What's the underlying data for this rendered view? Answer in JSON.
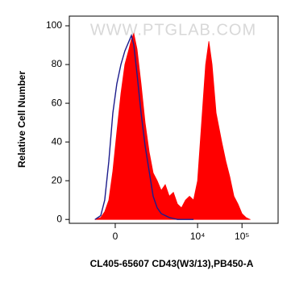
{
  "chart_data": {
    "type": "histogram-overlay",
    "watermark": "WWW.PTGLAB.COM",
    "x_label": "CL405-65607  CD43(W3/13),PB450-A",
    "y_label": "Relative Cell Number",
    "x_scale": "biexponential",
    "x": [
      -350,
      -231,
      -160,
      -95,
      -35,
      23,
      83,
      146,
      216,
      263,
      313,
      389,
      498,
      628,
      787,
      980,
      1218,
      1506,
      1862,
      2302,
      2842,
      3508,
      4326,
      5334,
      6580,
      8106,
      9996,
      12320,
      15180,
      17950,
      21220,
      26150,
      35060,
      43260,
      53290,
      65740,
      81120,
      99960,
      123200,
      151960
    ],
    "series": [
      {
        "color": "#ff0000",
        "fill": true,
        "values": [
          0,
          1,
          4,
          10,
          25,
          45,
          65,
          80,
          88,
          93,
          96,
          88,
          70,
          50,
          35,
          24,
          20,
          15,
          18,
          12,
          14,
          8,
          6,
          10,
          12,
          10,
          20,
          50,
          80,
          92,
          80,
          55,
          40,
          30,
          22,
          12,
          8,
          3,
          1,
          0
        ]
      },
      {
        "color": "#1c1c8c",
        "fill": false,
        "values": [
          0,
          2,
          10,
          30,
          55,
          70,
          80,
          87,
          92,
          95,
          90,
          75,
          55,
          38,
          25,
          12,
          6,
          3,
          2,
          1,
          0.5,
          0,
          0,
          0,
          0,
          0,
          null,
          null,
          null,
          null,
          null,
          null,
          null,
          null,
          null,
          null,
          null,
          null,
          null,
          null
        ]
      }
    ],
    "xlim": [
      -1500,
      650000
    ],
    "xticks": [
      0,
      {
        "value": 10000,
        "label": "10⁴"
      },
      {
        "value": 100000,
        "label": "10⁵"
      }
    ],
    "ylim": [
      -2,
      105
    ],
    "yticks": [
      0,
      20,
      40,
      60,
      80,
      100
    ]
  }
}
